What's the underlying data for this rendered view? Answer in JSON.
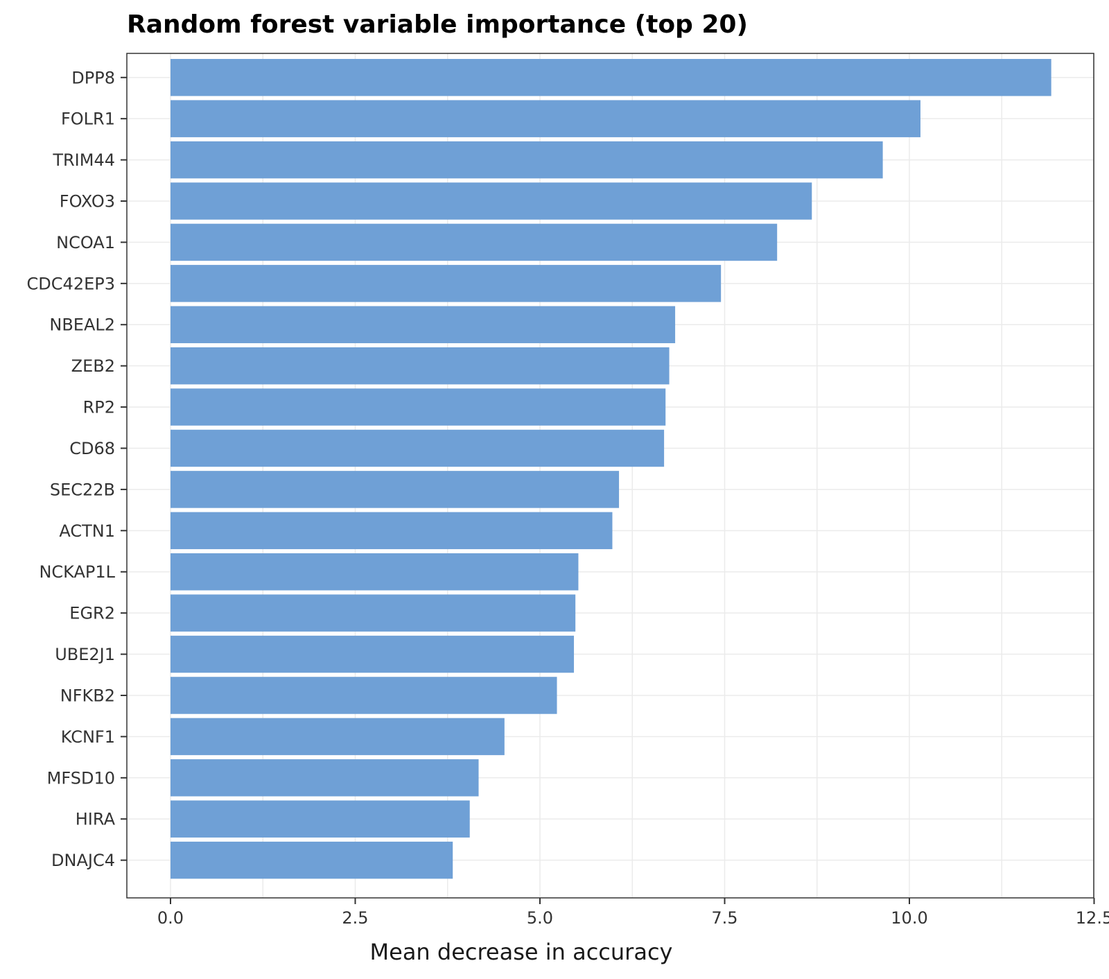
{
  "chart_data": {
    "type": "bar",
    "orientation": "horizontal",
    "title": "Random forest variable importance (top 20)",
    "xlabel": "Mean decrease in accuracy",
    "ylabel": "",
    "categories": [
      "DPP8",
      "FOLR1",
      "TRIM44",
      "FOXO3",
      "NCOA1",
      "CDC42EP3",
      "NBEAL2",
      "ZEB2",
      "RP2",
      "CD68",
      "SEC22B",
      "ACTN1",
      "NCKAP1L",
      "EGR2",
      "UBE2J1",
      "NFKB2",
      "KCNF1",
      "MFSD10",
      "HIRA",
      "DNAJC4"
    ],
    "values": [
      11.92,
      10.15,
      9.64,
      8.68,
      8.21,
      7.45,
      6.83,
      6.75,
      6.7,
      6.68,
      6.07,
      5.98,
      5.52,
      5.48,
      5.46,
      5.23,
      4.52,
      4.17,
      4.05,
      3.82
    ],
    "xlim": [
      -0.6,
      12.5
    ],
    "xticks": [
      "0.0",
      "2.5",
      "5.0",
      "7.5",
      "10.0",
      "12.5"
    ],
    "bar_color": "#6fa0d6",
    "grid": true
  }
}
